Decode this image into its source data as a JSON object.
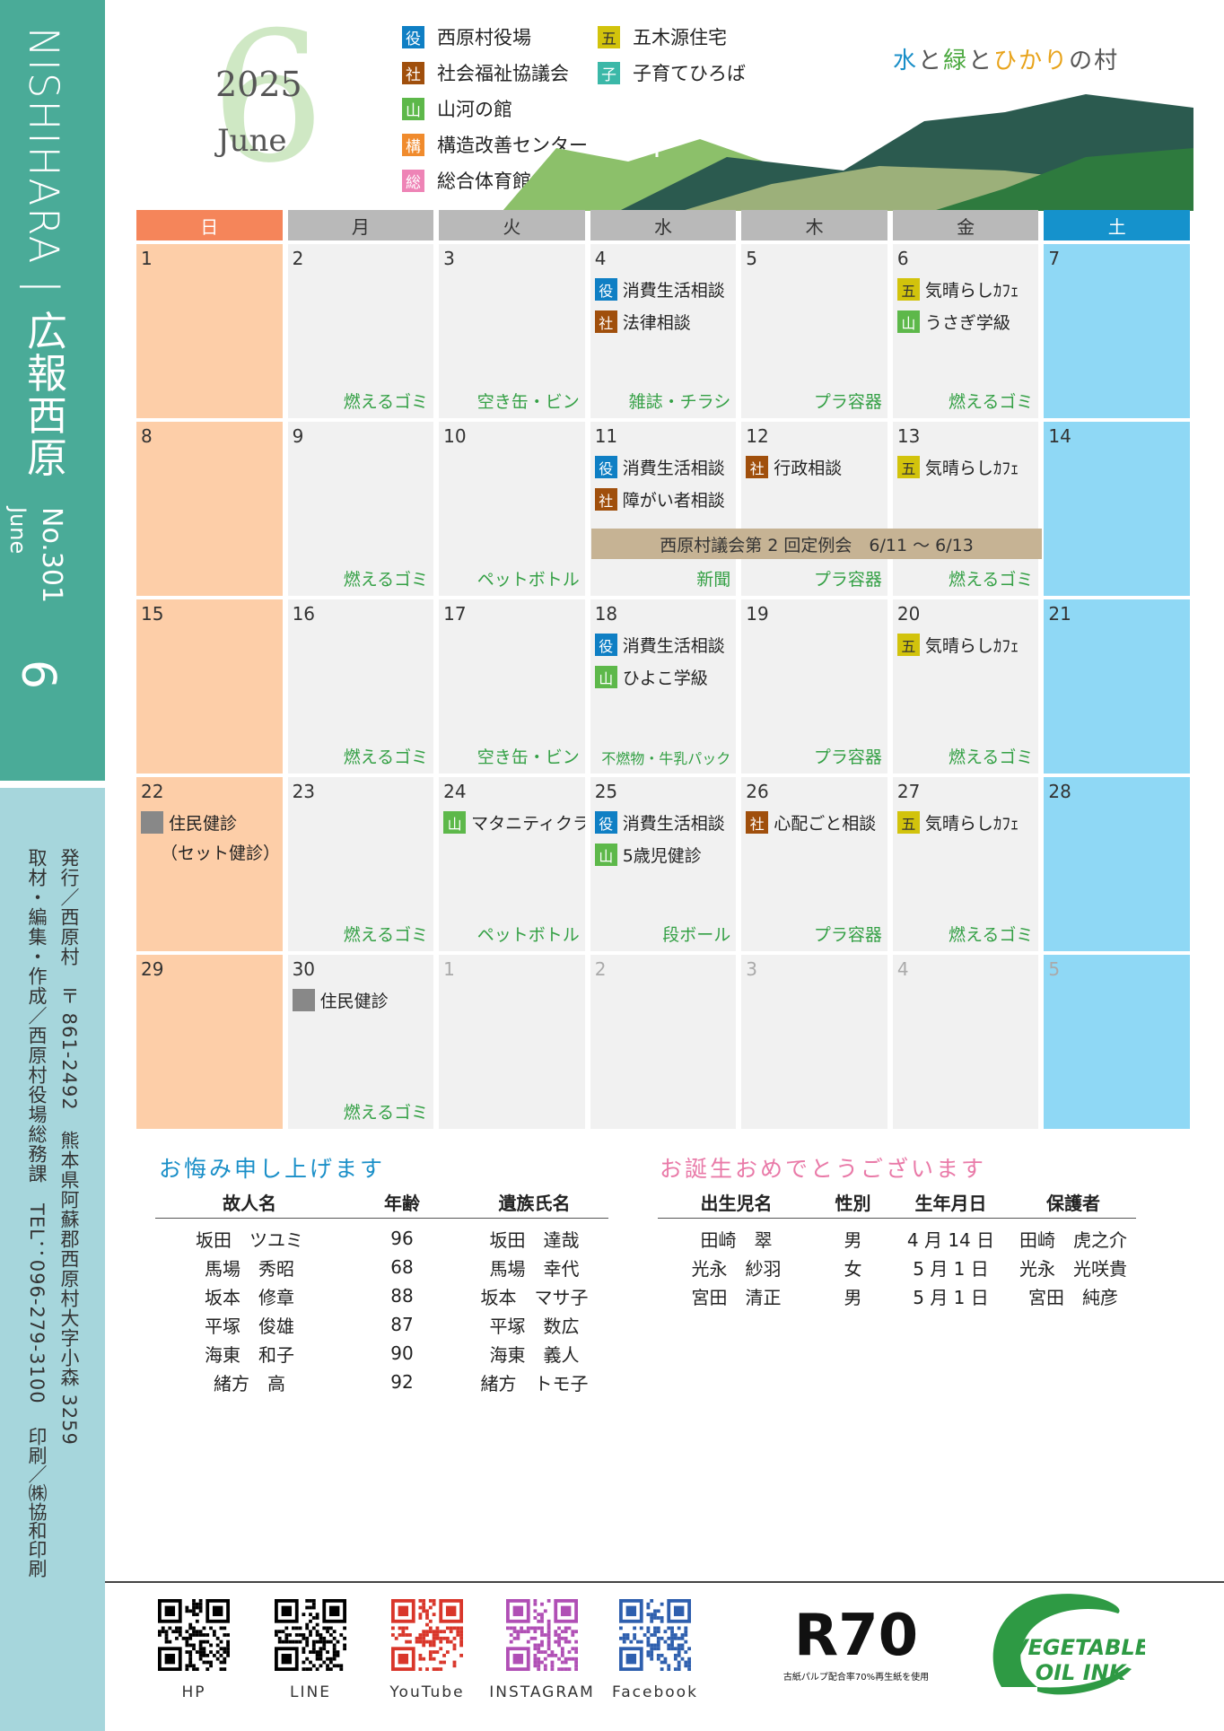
{
  "sidebar": {
    "title": "NISHIHARA | 広報西原",
    "issue_no": "No.301",
    "issue_month": "June",
    "issue_big": "6",
    "colophon_publisher": "発行／西原村　〒 861-2492　熊本県阿蘇郡西原村大字小森 3259",
    "colophon_editor": "取材・編集・作成／西原村役場総務課　TEL：096-279-3100",
    "colophon_printer": "印刷／㈱協和印刷"
  },
  "header": {
    "big_month": "6",
    "year": "2025",
    "month_en": "June",
    "slogan": [
      {
        "text": "水",
        "color": "#1a8fc8"
      },
      {
        "text": "と",
        "color": "#555555"
      },
      {
        "text": "緑",
        "color": "#4aa83e"
      },
      {
        "text": "と",
        "color": "#555555"
      },
      {
        "text": "ひかり",
        "color": "#e8a31a"
      },
      {
        "text": "の村",
        "color": "#555555"
      }
    ],
    "legend": [
      {
        "badge": "役",
        "label": "西原村役場",
        "cls": "b-yaku"
      },
      {
        "badge": "社",
        "label": "社会福祉協議会",
        "cls": "b-sha"
      },
      {
        "badge": "山",
        "label": "山河の館",
        "cls": "b-yama"
      },
      {
        "badge": "構",
        "label": "構造改善センター",
        "cls": "b-kou"
      },
      {
        "badge": "総",
        "label": "総合体育館",
        "cls": "b-sou"
      },
      {
        "badge": "五",
        "label": "五木源住宅",
        "cls": "b-go"
      },
      {
        "badge": "子",
        "label": "子育てひろば",
        "cls": "b-ko"
      }
    ]
  },
  "calendar": {
    "weekdays": [
      "日",
      "月",
      "火",
      "水",
      "木",
      "金",
      "土"
    ],
    "weeks": [
      [
        {
          "d": "1",
          "garbage": ""
        },
        {
          "d": "2",
          "garbage": "燃えるゴミ"
        },
        {
          "d": "3",
          "garbage": "空き缶・ビン"
        },
        {
          "d": "4",
          "events": [
            {
              "b": "役",
              "cls": "b-yaku",
              "t": "消費生活相談"
            },
            {
              "b": "社",
              "cls": "b-sha",
              "t": "法律相談"
            }
          ],
          "garbage": "雑誌・チラシ"
        },
        {
          "d": "5",
          "garbage": "プラ容器"
        },
        {
          "d": "6",
          "events": [
            {
              "b": "五",
              "cls": "b-go",
              "t": "気晴らしｶﾌｪ"
            },
            {
              "b": "山",
              "cls": "b-yama",
              "t": "うさぎ学級"
            }
          ],
          "garbage": "燃えるゴミ"
        },
        {
          "d": "7",
          "garbage": ""
        }
      ],
      [
        {
          "d": "8",
          "garbage": ""
        },
        {
          "d": "9",
          "garbage": "燃えるゴミ"
        },
        {
          "d": "10",
          "garbage": "ペットボトル"
        },
        {
          "d": "11",
          "events": [
            {
              "b": "役",
              "cls": "b-yaku",
              "t": "消費生活相談"
            },
            {
              "b": "社",
              "cls": "b-sha",
              "t": "障がい者相談"
            }
          ],
          "garbage": "新聞"
        },
        {
          "d": "12",
          "events": [
            {
              "b": "社",
              "cls": "b-sha",
              "t": "行政相談"
            }
          ],
          "garbage": "プラ容器"
        },
        {
          "d": "13",
          "events": [
            {
              "b": "五",
              "cls": "b-go",
              "t": "気晴らしｶﾌｪ"
            }
          ],
          "garbage": "燃えるゴミ"
        },
        {
          "d": "14",
          "garbage": ""
        }
      ],
      [
        {
          "d": "15",
          "garbage": ""
        },
        {
          "d": "16",
          "garbage": "燃えるゴミ"
        },
        {
          "d": "17",
          "garbage": "空き缶・ビン"
        },
        {
          "d": "18",
          "events": [
            {
              "b": "役",
              "cls": "b-yaku",
              "t": "消費生活相談"
            },
            {
              "b": "山",
              "cls": "b-yama",
              "t": "ひよこ学級"
            }
          ],
          "garbage": "不燃物・牛乳パック",
          "small": true
        },
        {
          "d": "19",
          "garbage": "プラ容器"
        },
        {
          "d": "20",
          "events": [
            {
              "b": "五",
              "cls": "b-go",
              "t": "気晴らしｶﾌｪ"
            }
          ],
          "garbage": "燃えるゴミ"
        },
        {
          "d": "21",
          "garbage": ""
        }
      ],
      [
        {
          "d": "22",
          "events": [
            {
              "b": "",
              "cls": "b-gray",
              "t": "住民健診"
            }
          ],
          "sub": "（セット健診）",
          "garbage": ""
        },
        {
          "d": "23",
          "garbage": "燃えるゴミ"
        },
        {
          "d": "24",
          "events": [
            {
              "b": "山",
              "cls": "b-yama",
              "t": "マタニティクラス"
            }
          ],
          "garbage": "ペットボトル"
        },
        {
          "d": "25",
          "events": [
            {
              "b": "役",
              "cls": "b-yaku",
              "t": "消費生活相談"
            },
            {
              "b": "山",
              "cls": "b-yama",
              "t": "5歳児健診"
            }
          ],
          "garbage": "段ボール"
        },
        {
          "d": "26",
          "events": [
            {
              "b": "社",
              "cls": "b-sha",
              "t": "心配ごと相談"
            }
          ],
          "garbage": "プラ容器"
        },
        {
          "d": "27",
          "events": [
            {
              "b": "五",
              "cls": "b-go",
              "t": "気晴らしｶﾌｪ"
            }
          ],
          "garbage": "燃えるゴミ"
        },
        {
          "d": "28",
          "garbage": ""
        }
      ],
      [
        {
          "d": "29",
          "garbage": ""
        },
        {
          "d": "30",
          "events": [
            {
              "b": "",
              "cls": "b-gray",
              "t": "住民健診"
            }
          ],
          "garbage": "燃えるゴミ"
        },
        {
          "d": "1",
          "next": true,
          "garbage": ""
        },
        {
          "d": "2",
          "next": true,
          "garbage": ""
        },
        {
          "d": "3",
          "next": true,
          "garbage": ""
        },
        {
          "d": "4",
          "next": true,
          "garbage": ""
        },
        {
          "d": "5",
          "next": true,
          "garbage": ""
        }
      ]
    ],
    "banner": "西原村議会第 2 回定例会　6/11 ～ 6/13"
  },
  "condolences": {
    "title": "お悔み申し上げます",
    "headers": [
      "故人名",
      "年齢",
      "遺族氏名"
    ],
    "rows": [
      [
        "坂田　ツユミ",
        "96",
        "坂田　達哉"
      ],
      [
        "馬場　秀昭",
        "68",
        "馬場　幸代"
      ],
      [
        "坂本　修章",
        "88",
        "坂本　マサ子"
      ],
      [
        "平塚　俊雄",
        "87",
        "平塚　数広"
      ],
      [
        "海東　和子",
        "90",
        "海東　義人"
      ],
      [
        "緒方　高",
        "92",
        "緒方　トモ子"
      ]
    ]
  },
  "births": {
    "title": "お誕生おめでとうございます",
    "headers": [
      "出生児名",
      "性別",
      "生年月日",
      "保護者"
    ],
    "rows": [
      [
        "田崎　翠",
        "男",
        "4 月 14 日",
        "田崎　虎之介"
      ],
      [
        "光永　紗羽",
        "女",
        "5 月 1 日",
        "光永　光咲貴"
      ],
      [
        "宮田　清正",
        "男",
        "5 月 1 日",
        "宮田　純彦"
      ]
    ]
  },
  "footer": {
    "links": [
      {
        "label": "HP",
        "color": "#000000",
        "icon": "qr-code-icon"
      },
      {
        "label": "LINE",
        "color": "#000000",
        "icon": "qr-code-icon"
      },
      {
        "label": "YouTube",
        "color": "#d9362a",
        "icon": "qr-code-icon"
      },
      {
        "label": "INSTAGRAM",
        "color": "#b04fb5",
        "icon": "qr-code-icon"
      },
      {
        "label": "Facebook",
        "color": "#2e5fae",
        "icon": "qr-code-icon"
      }
    ],
    "r70_logo": "R70",
    "r70_caption": "古紙パルプ配合率70%再生紙を使用",
    "veg_line1": "VEGETABLE",
    "veg_line2": "OIL INK"
  }
}
